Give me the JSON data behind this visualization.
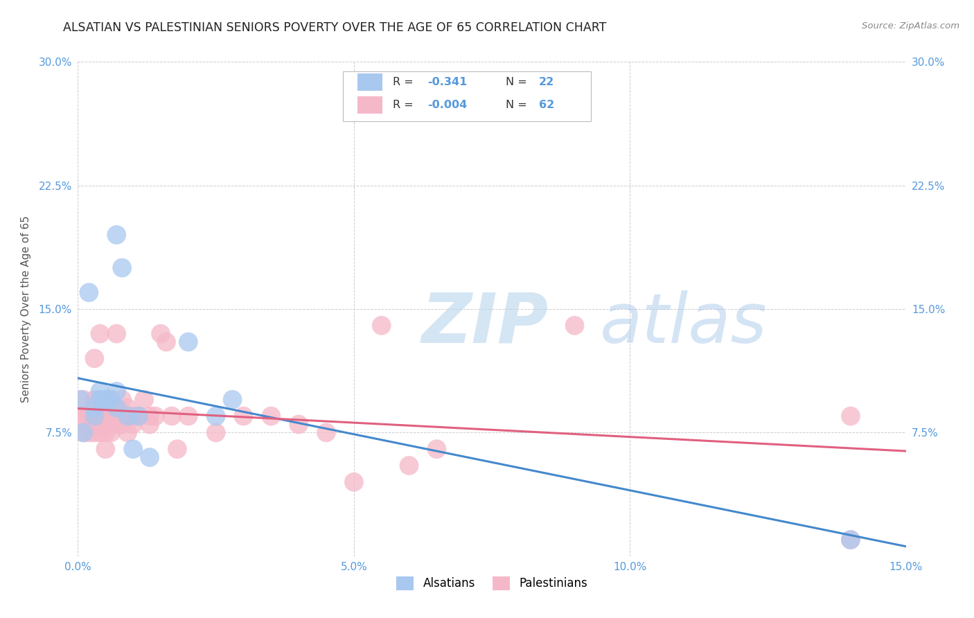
{
  "title": "ALSATIAN VS PALESTINIAN SENIORS POVERTY OVER THE AGE OF 65 CORRELATION CHART",
  "source": "Source: ZipAtlas.com",
  "ylabel": "Seniors Poverty Over the Age of 65",
  "xlim": [
    0.0,
    0.15
  ],
  "ylim": [
    0.0,
    0.3
  ],
  "yticks": [
    0.0,
    0.075,
    0.15,
    0.225,
    0.3
  ],
  "ytick_labels_left": [
    "",
    "7.5%",
    "15.0%",
    "22.5%",
    "30.0%"
  ],
  "ytick_labels_right": [
    "",
    "7.5%",
    "15.0%",
    "22.5%",
    "30.0%"
  ],
  "xticks": [
    0.0,
    0.05,
    0.1,
    0.15
  ],
  "xtick_labels": [
    "0.0%",
    "5.0%",
    "10.0%",
    "15.0%"
  ],
  "legend_r_alsatian": "-0.341",
  "legend_n_alsatian": "22",
  "legend_r_palestinian": "-0.004",
  "legend_n_palestinian": "62",
  "alsatian_color": "#a8c8f0",
  "palestinian_color": "#f5b8c8",
  "trendline_alsatian_color": "#4488cc",
  "trendline_palestinian_color": "#e06080",
  "watermark_zip": "ZIP",
  "watermark_atlas": "atlas",
  "alsatian_x": [
    0.0005,
    0.001,
    0.002,
    0.003,
    0.003,
    0.004,
    0.004,
    0.005,
    0.005,
    0.006,
    0.007,
    0.007,
    0.007,
    0.008,
    0.009,
    0.01,
    0.011,
    0.013,
    0.02,
    0.025,
    0.028,
    0.14
  ],
  "alsatian_y": [
    0.095,
    0.075,
    0.16,
    0.09,
    0.085,
    0.1,
    0.095,
    0.095,
    0.095,
    0.095,
    0.195,
    0.1,
    0.09,
    0.175,
    0.085,
    0.065,
    0.085,
    0.06,
    0.13,
    0.085,
    0.095,
    0.01
  ],
  "palestinian_x": [
    0.0005,
    0.001,
    0.001,
    0.001,
    0.002,
    0.002,
    0.002,
    0.003,
    0.003,
    0.003,
    0.003,
    0.004,
    0.004,
    0.004,
    0.004,
    0.004,
    0.005,
    0.005,
    0.005,
    0.005,
    0.006,
    0.006,
    0.006,
    0.006,
    0.006,
    0.007,
    0.007,
    0.007,
    0.007,
    0.007,
    0.008,
    0.008,
    0.008,
    0.009,
    0.009,
    0.009,
    0.009,
    0.01,
    0.01,
    0.01,
    0.011,
    0.012,
    0.013,
    0.013,
    0.014,
    0.015,
    0.016,
    0.017,
    0.018,
    0.02,
    0.025,
    0.03,
    0.035,
    0.04,
    0.045,
    0.05,
    0.055,
    0.06,
    0.065,
    0.09,
    0.14,
    0.14
  ],
  "palestinian_y": [
    0.085,
    0.095,
    0.085,
    0.075,
    0.085,
    0.085,
    0.075,
    0.12,
    0.095,
    0.085,
    0.075,
    0.135,
    0.095,
    0.085,
    0.08,
    0.075,
    0.085,
    0.085,
    0.075,
    0.065,
    0.095,
    0.095,
    0.085,
    0.08,
    0.075,
    0.135,
    0.09,
    0.085,
    0.085,
    0.08,
    0.095,
    0.085,
    0.08,
    0.09,
    0.085,
    0.085,
    0.075,
    0.085,
    0.085,
    0.08,
    0.085,
    0.095,
    0.085,
    0.08,
    0.085,
    0.135,
    0.13,
    0.085,
    0.065,
    0.085,
    0.075,
    0.085,
    0.085,
    0.08,
    0.075,
    0.045,
    0.14,
    0.055,
    0.065,
    0.14,
    0.085,
    0.01
  ],
  "bubble_size": 400,
  "background_color": "#ffffff",
  "grid_color": "#cccccc",
  "tick_color": "#5599dd",
  "title_color": "#222222",
  "title_fontsize": 12.5,
  "axis_label_fontsize": 11
}
